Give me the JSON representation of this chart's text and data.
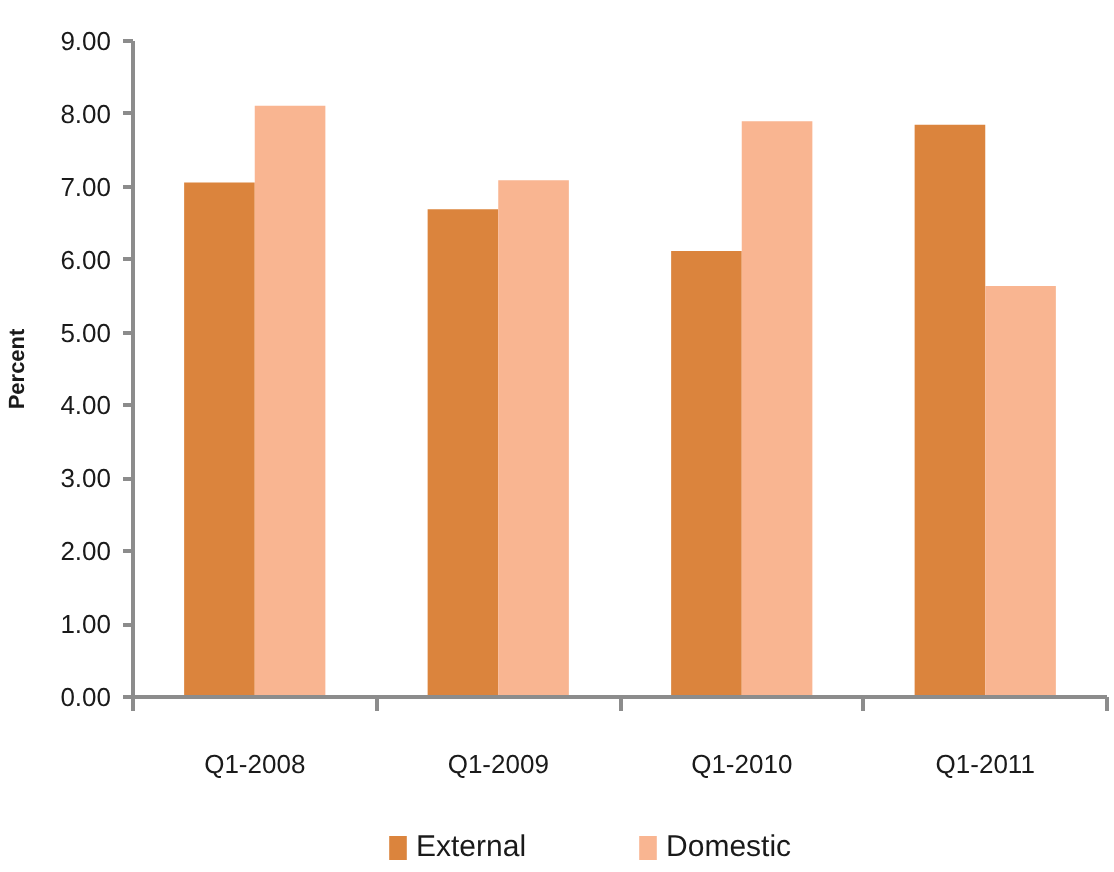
{
  "chart_data": {
    "type": "bar",
    "ylabel": "Percent",
    "categories": [
      "Q1-2008",
      "Q1-2009",
      "Q1-2010",
      "Q1-2011"
    ],
    "series": [
      {
        "name": "External",
        "color": "#db843d",
        "values": [
          7.06,
          6.69,
          6.12,
          7.85
        ]
      },
      {
        "name": "Domestic",
        "color": "#f9b591",
        "values": [
          8.11,
          7.09,
          7.9,
          5.64
        ]
      }
    ],
    "ylim": [
      0,
      9
    ],
    "yticks": [
      {
        "value": 0,
        "label": "0.00"
      },
      {
        "value": 1,
        "label": "1.00"
      },
      {
        "value": 2,
        "label": "2.00"
      },
      {
        "value": 3,
        "label": "3.00"
      },
      {
        "value": 4,
        "label": "4.00"
      },
      {
        "value": 5,
        "label": "5.00"
      },
      {
        "value": 6,
        "label": "6.00"
      },
      {
        "value": 7,
        "label": "7.00"
      },
      {
        "value": 8,
        "label": "8.00"
      },
      {
        "value": 9,
        "label": "9.00"
      }
    ],
    "legend": "bottom"
  }
}
